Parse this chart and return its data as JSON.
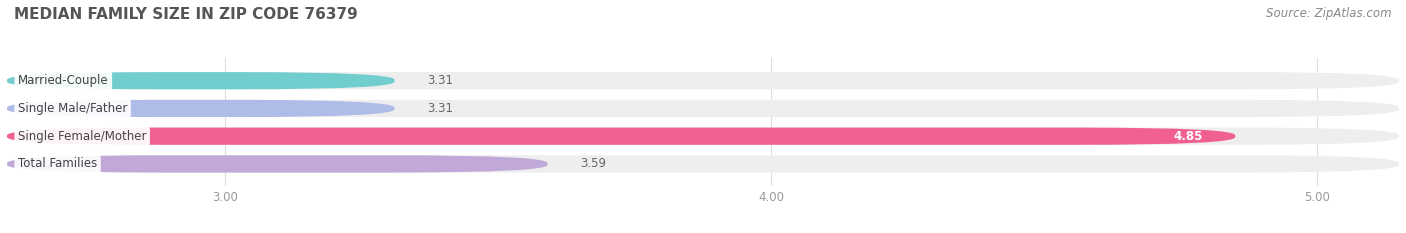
{
  "title": "MEDIAN FAMILY SIZE IN ZIP CODE 76379",
  "source": "Source: ZipAtlas.com",
  "categories": [
    "Married-Couple",
    "Single Male/Father",
    "Single Female/Mother",
    "Total Families"
  ],
  "values": [
    3.31,
    3.31,
    4.85,
    3.59
  ],
  "bar_colors": [
    "#72cece",
    "#b0bce8",
    "#f06090",
    "#c0a8d8"
  ],
  "bar_bg_colors": [
    "#eeeeee",
    "#eeeeee",
    "#eeeeee",
    "#eeeeee"
  ],
  "xlim_data": [
    2.6,
    5.15
  ],
  "xlim_display": [
    2.6,
    5.15
  ],
  "xticks": [
    3.0,
    4.0,
    5.0
  ],
  "xtick_labels": [
    "3.00",
    "4.00",
    "5.00"
  ],
  "background_color": "#ffffff",
  "bar_height": 0.62,
  "bar_gap": 0.38,
  "title_fontsize": 11,
  "label_fontsize": 8.5,
  "value_fontsize": 8.5,
  "tick_fontsize": 8.5,
  "source_fontsize": 8.5,
  "value_color_inside": "#ffffff",
  "value_color_outside": "#666666",
  "label_text_color": "#444444",
  "tick_color": "#999999",
  "grid_color": "#dddddd",
  "title_color": "#555555",
  "source_color": "#888888"
}
